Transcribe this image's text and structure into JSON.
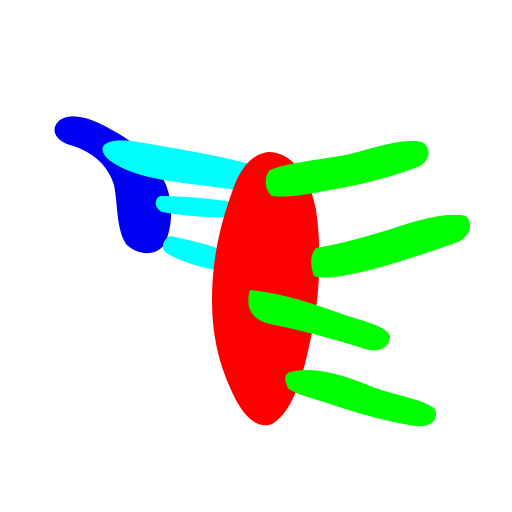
{
  "colors": {
    "background": "#ffffff",
    "blue": "#0000f0",
    "cyan": "#00ffff",
    "red": "#ff0000",
    "green": "#00ff00"
  },
  "shapes": {
    "blue": "blue-handle-icon",
    "cyan": "cyan-arm-icon",
    "red": "red-body-icon",
    "green": "green-finger-icon"
  }
}
